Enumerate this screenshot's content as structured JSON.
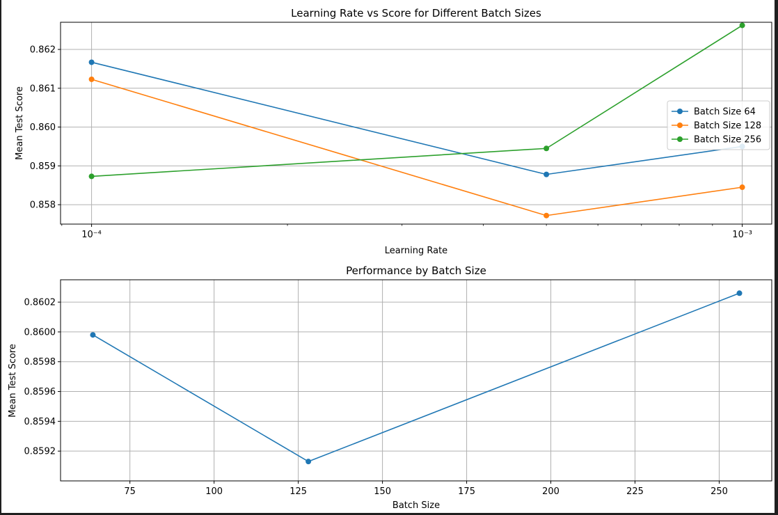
{
  "chart_data": [
    {
      "type": "line",
      "title": "Learning Rate vs Score for Different Batch Sizes",
      "xlabel": "Learning Rate",
      "ylabel": "Mean Test Score",
      "xscale": "log",
      "xlim": [
        8.96e-05,
        0.00111
      ],
      "ylim": [
        0.8575,
        0.8627
      ],
      "x": [
        0.0001,
        0.0005,
        0.001
      ],
      "x_ticks": [
        {
          "value": 0.0001,
          "label": "10⁻⁴"
        },
        {
          "value": 0.001,
          "label": "10⁻³"
        }
      ],
      "y_ticks": [
        {
          "value": 0.858,
          "label": "0.858"
        },
        {
          "value": 0.859,
          "label": "0.859"
        },
        {
          "value": 0.86,
          "label": "0.860"
        },
        {
          "value": 0.861,
          "label": "0.861"
        },
        {
          "value": 0.862,
          "label": "0.862"
        }
      ],
      "grid": true,
      "legend": "center-right",
      "series": [
        {
          "name": "Batch Size 64",
          "color": "#1f77b4",
          "values": [
            0.86167,
            0.85878,
            0.8595
          ]
        },
        {
          "name": "Batch Size 128",
          "color": "#ff7f0e",
          "values": [
            0.86123,
            0.85772,
            0.85845
          ]
        },
        {
          "name": "Batch Size 256",
          "color": "#2ca02c",
          "values": [
            0.85873,
            0.85945,
            0.86262
          ]
        }
      ]
    },
    {
      "type": "line",
      "title": "Performance by Batch Size",
      "xlabel": "Batch Size",
      "ylabel": "Mean Test Score",
      "xlim": [
        54.4,
        265.6
      ],
      "ylim": [
        0.859,
        0.86035
      ],
      "x": [
        64,
        128,
        256
      ],
      "x_ticks": [
        {
          "value": 75,
          "label": "75"
        },
        {
          "value": 100,
          "label": "100"
        },
        {
          "value": 125,
          "label": "125"
        },
        {
          "value": 150,
          "label": "150"
        },
        {
          "value": 175,
          "label": "175"
        },
        {
          "value": 200,
          "label": "200"
        },
        {
          "value": 225,
          "label": "225"
        },
        {
          "value": 250,
          "label": "250"
        }
      ],
      "y_ticks": [
        {
          "value": 0.8592,
          "label": "0.8592"
        },
        {
          "value": 0.8594,
          "label": "0.8594"
        },
        {
          "value": 0.8596,
          "label": "0.8596"
        },
        {
          "value": 0.8598,
          "label": "0.8598"
        },
        {
          "value": 0.86,
          "label": "0.8600"
        },
        {
          "value": 0.8602,
          "label": "0.8602"
        }
      ],
      "grid": true,
      "legend": "none",
      "series": [
        {
          "color": "#1f77b4",
          "values": [
            0.85998,
            0.85913,
            0.86026
          ]
        }
      ]
    }
  ]
}
